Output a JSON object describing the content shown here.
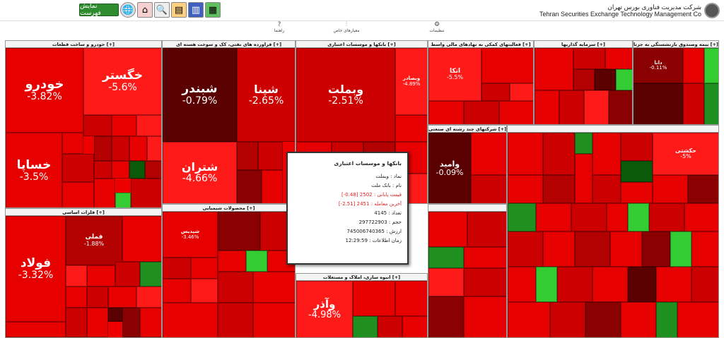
{
  "brand": {
    "title": "شرکت مدیریت فناوری بورس تهران",
    "subtitle": "Tehran Securities Exchange Technology Management Co"
  },
  "toolbar": {
    "list_label": "نمایش فهرست",
    "icons": [
      "grid-icon",
      "chart-icon",
      "table-icon",
      "search-icon",
      "home-icon",
      "globe-icon"
    ]
  },
  "subbar": {
    "guide": "راهنما",
    "filter": "معیارهای خاص",
    "settings": "تنظیمات"
  },
  "sections": [
    {
      "title": "خودرو و ساخت قطعات [+]",
      "tiles": [
        {
          "n": "خودرو",
          "p": "-3.82%",
          "c": "r2"
        },
        {
          "n": "خگستر",
          "p": "-5.6%",
          "c": "r1"
        },
        {
          "n": "خساپا",
          "p": "-3.5%",
          "c": "r2"
        }
      ]
    },
    {
      "title": "فراورده های نفتی، کک و سوخت هسته ای [+]",
      "tiles": [
        {
          "n": "شبندر",
          "p": "-0.79%",
          "c": "r6"
        },
        {
          "n": "شپنا",
          "p": "-2.65%",
          "c": "r3"
        },
        {
          "n": "شتران",
          "p": "-4.66%",
          "c": "r1"
        }
      ]
    },
    {
      "title": "بانکها و موسسات اعتباری [+]",
      "tiles": [
        {
          "n": "وبملت",
          "p": "-2.51%",
          "c": "r3"
        },
        {
          "n": "وبصادر",
          "p": "-4.89%",
          "c": "r1"
        }
      ]
    },
    {
      "title": "فعالیتهای کمکی به نهادهای مالی واسط [+]",
      "tiles": [
        {
          "n": "اتکا",
          "p": "-5.5%",
          "c": "r1"
        }
      ]
    },
    {
      "title": "سرمایه گذاریها [+]",
      "tiles": []
    },
    {
      "title": "بیمه وصندوق بازنشستگی به جزتا [+]",
      "tiles": [
        {
          "n": "دانا",
          "p": "-0.11%",
          "c": "r6"
        }
      ]
    },
    {
      "title": "فلزات اساسی [+]",
      "tiles": [
        {
          "n": "فولاد",
          "p": "-3.32%",
          "c": "r2"
        },
        {
          "n": "فملی",
          "p": "-1.88%",
          "c": "r4"
        }
      ]
    },
    {
      "title": "محصولات شیمیایی [+]",
      "tiles": [
        {
          "n": "شپدیس",
          "p": "-3.46%",
          "c": "r2"
        }
      ]
    },
    {
      "title": "انبوه سازی، املاک و مستغلات [+]",
      "tiles": [
        {
          "n": "وآذر",
          "p": "-4.98%",
          "c": "r1"
        }
      ]
    },
    {
      "title": "شرکتهای چند رشته ای صنعتی [+]",
      "tiles": [
        {
          "n": "وامید",
          "p": "-0.09%",
          "c": "r6"
        }
      ]
    },
    {
      "title": "حکشتی",
      "p": "-5%"
    }
  ],
  "tooltip": {
    "title": "بانکها و موسسات اعتباری",
    "rows": [
      {
        "label": "نماد",
        "value": "وبملت",
        "red": false
      },
      {
        "label": "نام",
        "value": "بانک ملت",
        "red": false
      },
      {
        "label": "قیمت پایانی",
        "value": "2502 [0.48-]",
        "red": true
      },
      {
        "label": "آخرین معامله",
        "value": "2451 [2.51-]",
        "red": true
      },
      {
        "label": "تعداد",
        "value": "4145",
        "red": false
      },
      {
        "label": "حجم",
        "value": "297722903",
        "red": false
      },
      {
        "label": "ارزش",
        "value": "745006740365",
        "red": false
      },
      {
        "label": "زمان اطلاعات",
        "value": "12:29:59",
        "red": false
      }
    ]
  }
}
